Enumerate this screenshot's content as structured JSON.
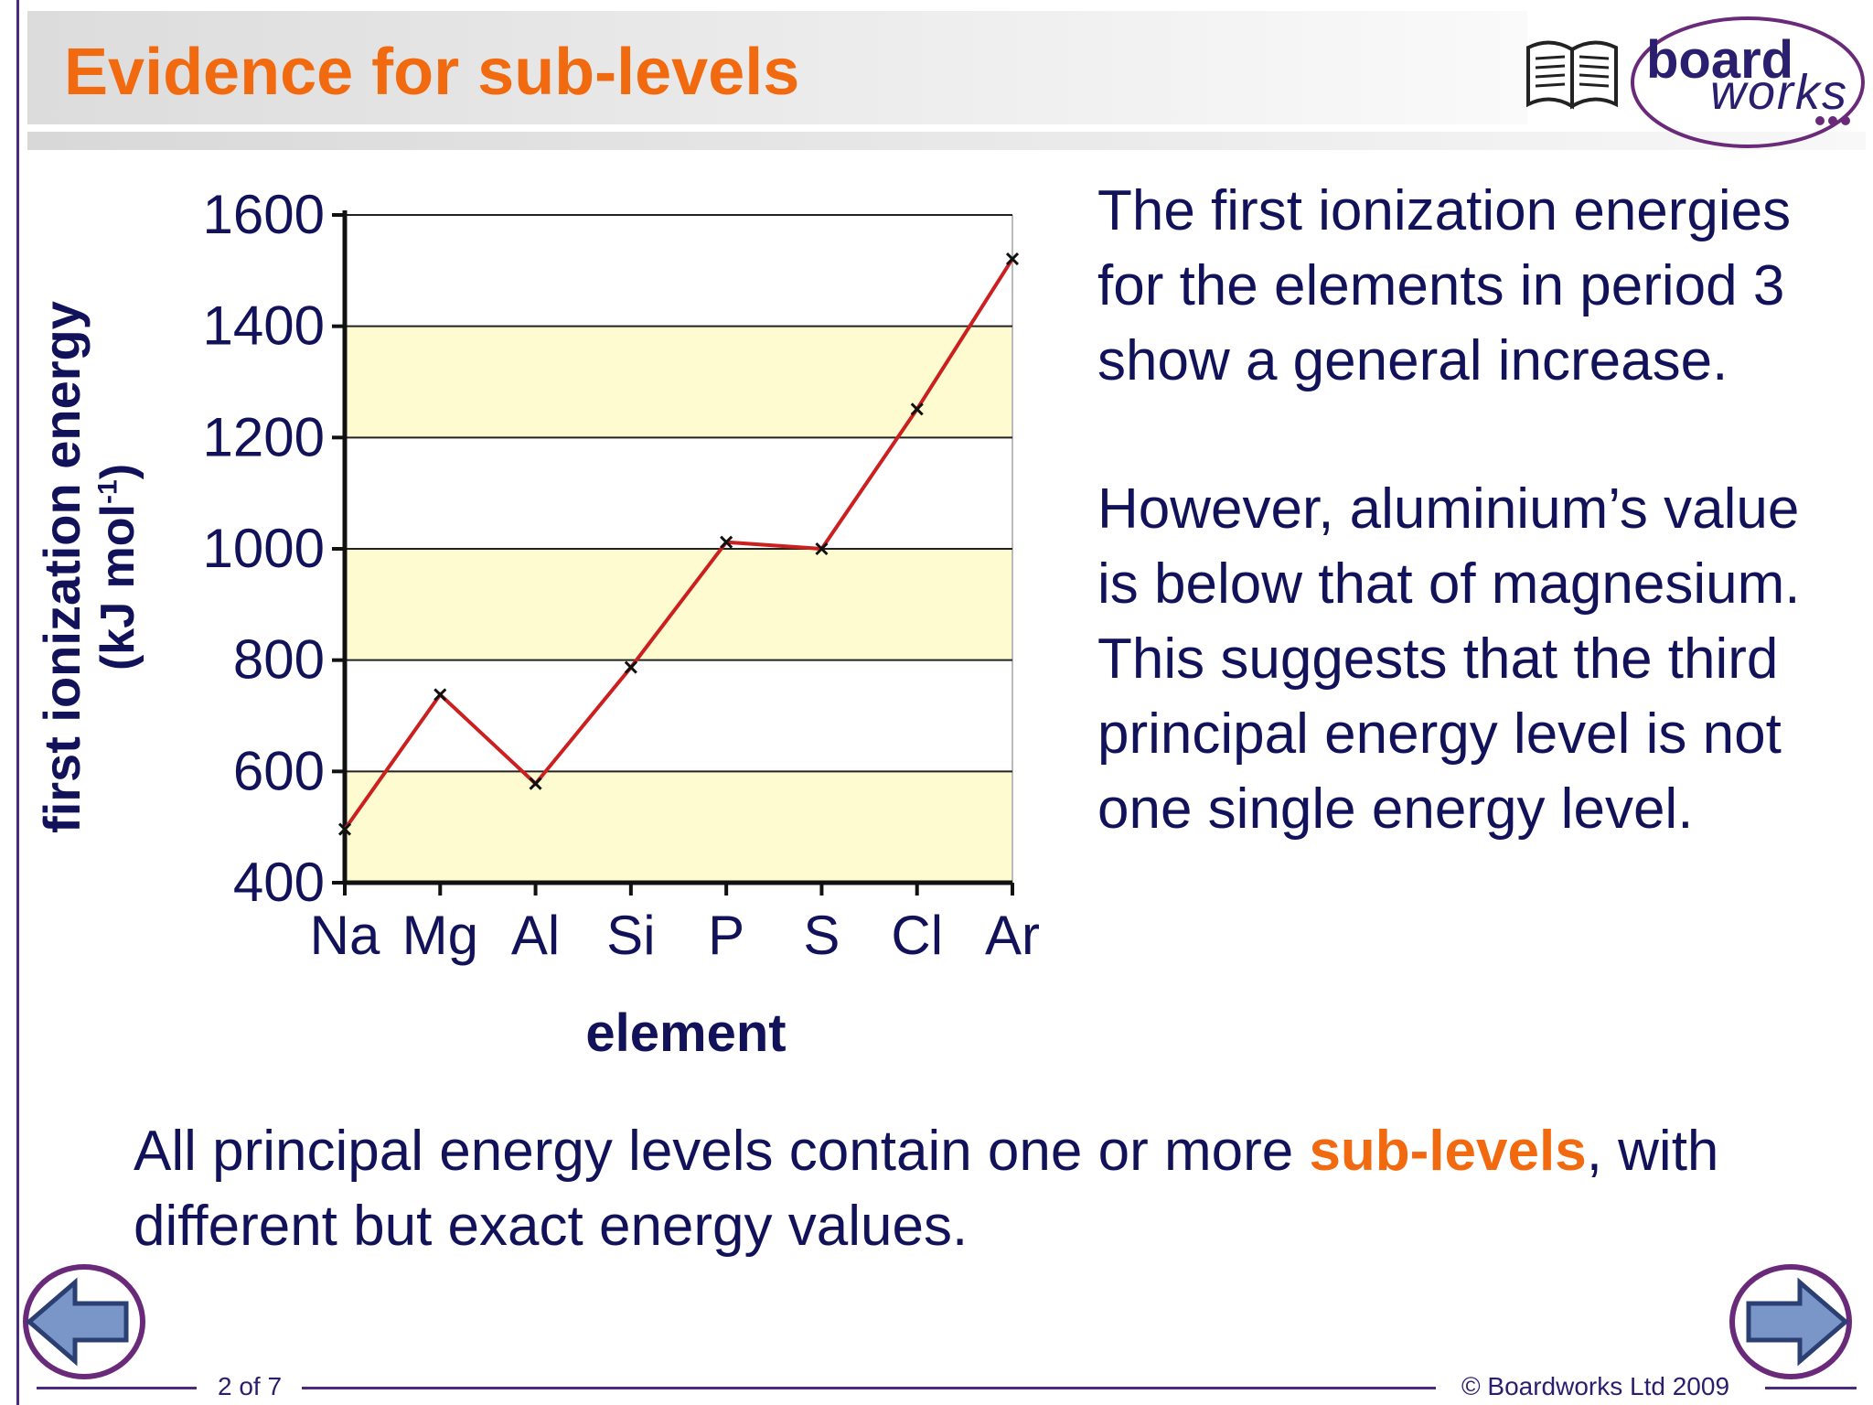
{
  "slide": {
    "title": "Evidence for sub-levels",
    "logo_text_top": "board",
    "logo_text_bottom": "works",
    "side_paragraph_1": "The first ionization energies for the elements in period 3 show a general increase.",
    "side_paragraph_2": "However, aluminium’s value is below that of magnesium. This suggests that the third principal energy level is not one single energy level.",
    "bottom_text_before": "All principal energy levels contain one or more ",
    "bottom_text_highlight": "sub-levels",
    "bottom_text_after": ", with different but exact energy values.",
    "page_number": "2 of 7",
    "copyright": "© Boardworks Ltd 2009"
  },
  "colors": {
    "title": "#f26a0f",
    "text": "#12125a",
    "accent_purple": "#4b2a80",
    "band_fill": "#fffbd0",
    "line": "#cc1f1f"
  },
  "chart_data": {
    "type": "line",
    "title": "",
    "xlabel": "element",
    "ylabel": "first ionization energy",
    "ylabel_unit": "(kJ mol",
    "ylabel_unit_sup": "-1",
    "ylabel_unit_end": ")",
    "categories": [
      "Na",
      "Mg",
      "Al",
      "Si",
      "P",
      "S",
      "Cl",
      "Ar"
    ],
    "series": [
      {
        "values": [
          496,
          738,
          578,
          787,
          1012,
          1000,
          1251,
          1521
        ]
      }
    ],
    "ylim": [
      400,
      1600
    ],
    "yticks": [
      400,
      600,
      800,
      1000,
      1200,
      1400,
      1600
    ],
    "grid": true,
    "legend": "none"
  },
  "icons": {
    "book": "book-icon",
    "prev": "arrow-left-icon",
    "next": "arrow-right-icon"
  }
}
